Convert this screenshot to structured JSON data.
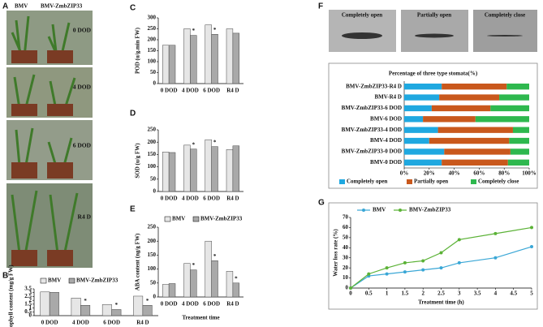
{
  "panel_labels": [
    "A",
    "B",
    "C",
    "D",
    "E",
    "F",
    "G"
  ],
  "photos_a": {
    "columns": [
      "BMV",
      "BMV-ZmbZIP33"
    ],
    "rows": [
      "0 DOD",
      "4 DOD",
      "6 DOD",
      "R4 D"
    ]
  },
  "stomata_photos": [
    "Completely open",
    "Partially open",
    "Completely close"
  ],
  "chart_data": [
    {
      "type": "bar",
      "ylabel": "chlorophyll content (mg/g FW)",
      "legend": "top",
      "categories": [
        "0 DOD",
        "4 DOD",
        "6 DOD",
        "R4 D"
      ],
      "series": [
        {
          "name": "BMV",
          "color": "#e6e6e6",
          "values": [
            3.1,
            2.3,
            1.45,
            2.55
          ]
        },
        {
          "name": "BMV-ZmbZIP33",
          "color": "#a9a9a9",
          "values": [
            3.05,
            1.35,
            0.8,
            1.35
          ],
          "significance": [
            null,
            "*",
            "*",
            "*"
          ]
        }
      ],
      "ylim": [
        0,
        3.5
      ],
      "yticks": [
        0,
        0.5,
        1,
        1.5,
        2,
        2.5,
        3,
        3.5
      ]
    },
    {
      "type": "bar",
      "ylabel": "POD (u/g.min FW)",
      "categories": [
        "0 DOD",
        "4 DOD",
        "6 DOD",
        "R4 D"
      ],
      "series": [
        {
          "color": "#e6e6e6",
          "values": [
            175,
            250,
            268,
            250
          ]
        },
        {
          "color": "#a9a9a9",
          "values": [
            175,
            220,
            225,
            230
          ],
          "significance": [
            null,
            "*",
            "*",
            null
          ]
        }
      ],
      "ylim": [
        0,
        300
      ],
      "yticks": [
        0,
        50,
        100,
        150,
        200,
        250,
        300
      ]
    },
    {
      "type": "bar",
      "ylabel": "SOD (u/g FW)",
      "categories": [
        "0 DOD",
        "4 DOD",
        "6 DOD",
        "R4 D"
      ],
      "series": [
        {
          "color": "#e6e6e6",
          "values": [
            160,
            188,
            210,
            170
          ]
        },
        {
          "color": "#a9a9a9",
          "values": [
            158,
            172,
            182,
            185
          ],
          "significance": [
            null,
            "*",
            "*",
            null
          ]
        }
      ],
      "ylim": [
        0,
        250
      ],
      "yticks": [
        0,
        50,
        100,
        150,
        200,
        250
      ]
    },
    {
      "type": "bar",
      "ylabel": "ABA content (ng/g FW)",
      "xlabel": "Treatment time",
      "legend": "top",
      "categories": [
        "0 DOD",
        "4 DOD",
        "6 DOD",
        "R4 D"
      ],
      "series": [
        {
          "name": "BMV",
          "color": "#e6e6e6",
          "values": [
            45,
            120,
            200,
            92
          ]
        },
        {
          "name": "BMV-ZmbZIP33",
          "color": "#a9a9a9",
          "values": [
            48,
            97,
            130,
            50
          ],
          "significance": [
            null,
            "*",
            "*",
            "*"
          ]
        }
      ],
      "ylim": [
        0,
        250
      ],
      "yticks": [
        0,
        50,
        100,
        150,
        200,
        250
      ]
    },
    {
      "type": "stackedbar",
      "title": "Percentage of three type stomata(%)",
      "legend": "bottom",
      "categories": [
        "BMV-ZmbZIP33-R4 D",
        "BMV-R4 D",
        "BMV-ZmbZIP33-6 DOD",
        "BMV-6 DOD",
        "BMV-ZmbZIP33-4 DOD",
        "BMV-4 DOD",
        "BMV-ZmbZIP33-0 DOD",
        "BMV-0 DOD"
      ],
      "series": [
        {
          "name": "Completely open",
          "color": "#1fa8e0",
          "values": [
            30,
            28,
            22,
            15,
            27,
            20,
            32,
            30
          ]
        },
        {
          "name": "Partially open",
          "color": "#c9581c",
          "values": [
            52,
            48,
            47,
            42,
            60,
            64,
            53,
            53
          ]
        },
        {
          "name": "Completely close",
          "color": "#2eb84e",
          "values": [
            18,
            24,
            31,
            43,
            13,
            16,
            15,
            17
          ]
        }
      ],
      "xlim": [
        0,
        100
      ],
      "xticks": [
        {
          "value": 0,
          "label": "0%"
        },
        {
          "value": 20,
          "label": "20%"
        },
        {
          "value": 40,
          "label": "40%"
        },
        {
          "value": 60,
          "label": "60%"
        },
        {
          "value": 80,
          "label": "80%"
        },
        {
          "value": 100,
          "label": "100%"
        }
      ]
    },
    {
      "type": "line",
      "xlabel": "Treatment time (h)",
      "ylabel": "Water loss rate (%)",
      "legend": "top",
      "x": [
        0,
        0.5,
        1,
        1.5,
        2,
        2.5,
        3,
        4,
        5
      ],
      "series": [
        {
          "name": "BMV",
          "color": "#3aa7d6",
          "values": [
            0,
            12,
            14,
            16,
            18,
            20,
            25,
            30,
            41
          ]
        },
        {
          "name": "BMV-ZmbZIP33",
          "color": "#5bb236",
          "values": [
            0,
            14,
            20,
            25,
            27,
            35,
            48,
            54,
            60
          ]
        }
      ],
      "xlim": [
        0,
        5
      ],
      "xticks": [
        0,
        0.5,
        1,
        1.5,
        2,
        2.5,
        3,
        3.5,
        4,
        4.5,
        5
      ],
      "ylim": [
        0,
        70
      ],
      "yticks": [
        0,
        10,
        20,
        30,
        40,
        50,
        60,
        70
      ]
    }
  ]
}
